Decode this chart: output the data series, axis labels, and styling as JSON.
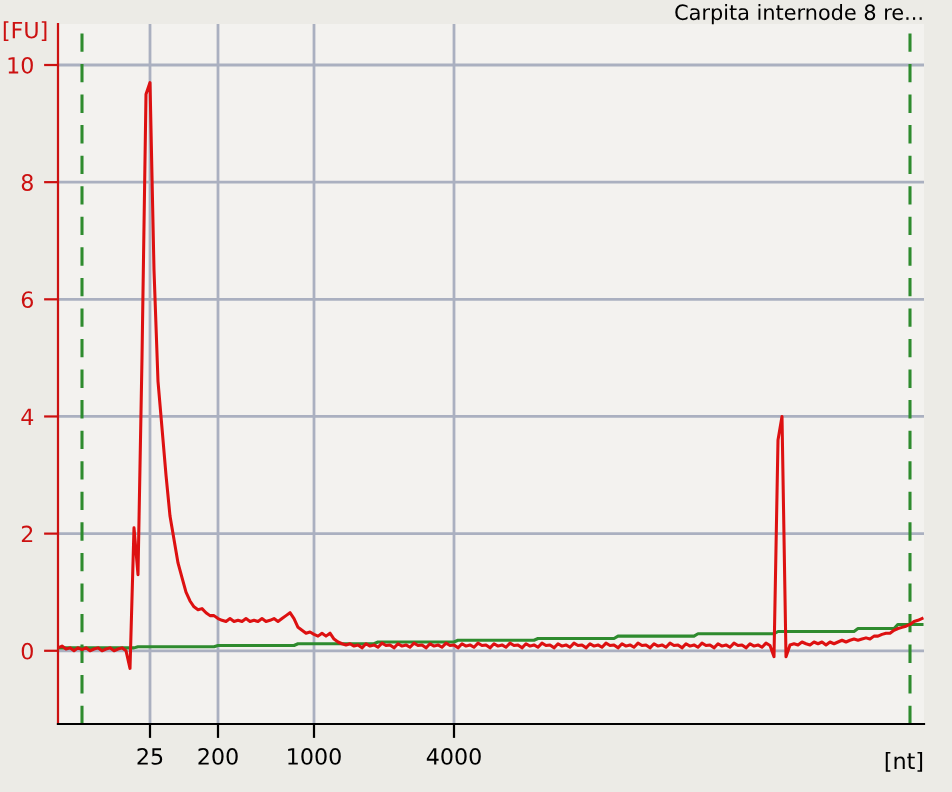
{
  "chart_data": {
    "type": "line",
    "title": "Carpita internode 8 re...",
    "xlabel": "[nt]",
    "ylabel": "[FU]",
    "categories": [
      null,
      null,
      null,
      null,
      null,
      null,
      null,
      null,
      null,
      null,
      null,
      null,
      null,
      null,
      null,
      null,
      null,
      null,
      null,
      null,
      null,
      null,
      null,
      "25",
      null,
      null,
      null,
      null,
      null,
      null,
      null,
      null,
      null,
      null,
      null,
      null,
      null,
      null,
      null,
      null,
      "200",
      null,
      null,
      null,
      null,
      null,
      null,
      null,
      null,
      null,
      null,
      null,
      null,
      null,
      null,
      null,
      null,
      null,
      null,
      null,
      null,
      null,
      null,
      null,
      "1000",
      null,
      null,
      null,
      null,
      null,
      null,
      null,
      null,
      null,
      null,
      null,
      null,
      null,
      null,
      null,
      null,
      null,
      null,
      null,
      null,
      null,
      null,
      null,
      null,
      null,
      null,
      null,
      null,
      null,
      null,
      null,
      null,
      null,
      null,
      "4000",
      null,
      null,
      null,
      null,
      null,
      null,
      null,
      null,
      null,
      null,
      null,
      null,
      null,
      null,
      null,
      null,
      null,
      null,
      null,
      null,
      null,
      null,
      null,
      null,
      null,
      null,
      null,
      null,
      null,
      null,
      null,
      null,
      null,
      null,
      null,
      null,
      null,
      null,
      null,
      null,
      null,
      null,
      null,
      null,
      null,
      null,
      null,
      null,
      null,
      null,
      null,
      null,
      null,
      null,
      null,
      null,
      null,
      null,
      null,
      null,
      null,
      null,
      null,
      null,
      null,
      null,
      null,
      null,
      null,
      null,
      null,
      null,
      null,
      null,
      null,
      null,
      null,
      null,
      null,
      null,
      null,
      null,
      null,
      null,
      null,
      null,
      null,
      null,
      null,
      null,
      null,
      null,
      null,
      null,
      null,
      null,
      null,
      null,
      null,
      null,
      null,
      null,
      null,
      null,
      null,
      null,
      null,
      null,
      null,
      null,
      null,
      null,
      null,
      null,
      null,
      null,
      null
    ],
    "ylim": [
      -1.25,
      10.7
    ],
    "yticks": [
      0,
      2,
      4,
      6,
      8,
      10
    ],
    "grid": true,
    "marker": "none",
    "line_style": "solid",
    "series": [
      {
        "color": "#2e8b2e",
        "values": [
          0.05,
          0.05,
          0.05,
          0.05,
          0.05,
          0.05,
          0.05,
          0.05,
          0.05,
          0.05,
          0.05,
          0.05,
          0.05,
          0.05,
          0.05,
          0.05,
          0.05,
          0.05,
          0.05,
          0.05,
          0.07,
          0.07,
          0.07,
          0.07,
          0.07,
          0.07,
          0.07,
          0.07,
          0.07,
          0.07,
          0.07,
          0.07,
          0.07,
          0.07,
          0.07,
          0.07,
          0.07,
          0.07,
          0.07,
          0.07,
          0.09,
          0.09,
          0.09,
          0.09,
          0.09,
          0.09,
          0.09,
          0.09,
          0.09,
          0.09,
          0.09,
          0.09,
          0.09,
          0.09,
          0.09,
          0.09,
          0.09,
          0.09,
          0.09,
          0.09,
          0.12,
          0.12,
          0.12,
          0.12,
          0.12,
          0.12,
          0.12,
          0.12,
          0.12,
          0.12,
          0.12,
          0.12,
          0.12,
          0.12,
          0.12,
          0.12,
          0.12,
          0.12,
          0.12,
          0.12,
          0.15,
          0.15,
          0.15,
          0.15,
          0.15,
          0.15,
          0.15,
          0.15,
          0.15,
          0.15,
          0.15,
          0.15,
          0.15,
          0.15,
          0.15,
          0.15,
          0.15,
          0.15,
          0.15,
          0.15,
          0.18,
          0.18,
          0.18,
          0.18,
          0.18,
          0.18,
          0.18,
          0.18,
          0.18,
          0.18,
          0.18,
          0.18,
          0.18,
          0.18,
          0.18,
          0.18,
          0.18,
          0.18,
          0.18,
          0.18,
          0.21,
          0.21,
          0.21,
          0.21,
          0.21,
          0.21,
          0.21,
          0.21,
          0.21,
          0.21,
          0.21,
          0.21,
          0.21,
          0.21,
          0.21,
          0.21,
          0.21,
          0.21,
          0.21,
          0.21,
          0.25,
          0.25,
          0.25,
          0.25,
          0.25,
          0.25,
          0.25,
          0.25,
          0.25,
          0.25,
          0.25,
          0.25,
          0.25,
          0.25,
          0.25,
          0.25,
          0.25,
          0.25,
          0.25,
          0.25,
          0.29,
          0.29,
          0.29,
          0.29,
          0.29,
          0.29,
          0.29,
          0.29,
          0.29,
          0.29,
          0.29,
          0.29,
          0.29,
          0.29,
          0.29,
          0.29,
          0.29,
          0.29,
          0.29,
          0.29,
          0.33,
          0.33,
          0.33,
          0.33,
          0.33,
          0.33,
          0.33,
          0.33,
          0.33,
          0.33,
          0.33,
          0.33,
          0.33,
          0.33,
          0.33,
          0.33,
          0.33,
          0.33,
          0.33,
          0.33,
          0.38,
          0.38,
          0.38,
          0.38,
          0.38,
          0.38,
          0.38,
          0.38,
          0.38,
          0.38,
          0.45,
          0.45,
          0.45,
          0.45,
          0.45,
          0.45,
          0.45
        ]
      },
      {
        "color": "#dd1111",
        "values": [
          0.05,
          0.08,
          0.03,
          0.05,
          0.0,
          0.05,
          0.02,
          0.05,
          0.0,
          0.03,
          0.05,
          0.0,
          0.03,
          0.05,
          0.0,
          0.03,
          0.05,
          0.0,
          -0.3,
          2.1,
          1.3,
          5.0,
          9.5,
          9.7,
          6.5,
          4.6,
          3.8,
          3.0,
          2.3,
          1.9,
          1.5,
          1.25,
          1.0,
          0.85,
          0.75,
          0.7,
          0.72,
          0.65,
          0.6,
          0.6,
          0.55,
          0.52,
          0.5,
          0.55,
          0.5,
          0.52,
          0.5,
          0.55,
          0.5,
          0.52,
          0.5,
          0.55,
          0.5,
          0.52,
          0.55,
          0.5,
          0.55,
          0.6,
          0.65,
          0.55,
          0.4,
          0.35,
          0.3,
          0.32,
          0.28,
          0.25,
          0.3,
          0.25,
          0.3,
          0.2,
          0.15,
          0.12,
          0.1,
          0.12,
          0.08,
          0.1,
          0.05,
          0.12,
          0.08,
          0.1,
          0.06,
          0.13,
          0.09,
          0.1,
          0.05,
          0.12,
          0.08,
          0.1,
          0.06,
          0.13,
          0.09,
          0.1,
          0.05,
          0.12,
          0.08,
          0.1,
          0.06,
          0.13,
          0.09,
          0.1,
          0.05,
          0.12,
          0.08,
          0.1,
          0.06,
          0.13,
          0.09,
          0.1,
          0.05,
          0.12,
          0.08,
          0.1,
          0.06,
          0.13,
          0.09,
          0.1,
          0.05,
          0.12,
          0.08,
          0.1,
          0.06,
          0.13,
          0.09,
          0.1,
          0.05,
          0.12,
          0.08,
          0.1,
          0.06,
          0.13,
          0.09,
          0.1,
          0.05,
          0.12,
          0.08,
          0.1,
          0.06,
          0.13,
          0.09,
          0.1,
          0.05,
          0.12,
          0.08,
          0.1,
          0.06,
          0.13,
          0.09,
          0.1,
          0.05,
          0.12,
          0.08,
          0.1,
          0.06,
          0.13,
          0.09,
          0.1,
          0.05,
          0.12,
          0.08,
          0.1,
          0.06,
          0.13,
          0.09,
          0.1,
          0.05,
          0.12,
          0.08,
          0.1,
          0.06,
          0.13,
          0.09,
          0.1,
          0.05,
          0.12,
          0.08,
          0.1,
          0.06,
          0.13,
          0.09,
          -0.1,
          3.6,
          4.0,
          -0.1,
          0.1,
          0.12,
          0.1,
          0.15,
          0.12,
          0.1,
          0.15,
          0.12,
          0.15,
          0.1,
          0.15,
          0.12,
          0.15,
          0.18,
          0.15,
          0.18,
          0.2,
          0.18,
          0.2,
          0.22,
          0.2,
          0.25,
          0.25,
          0.28,
          0.3,
          0.3,
          0.35,
          0.38,
          0.4,
          0.42,
          0.45,
          0.5,
          0.52,
          0.55
        ]
      }
    ]
  }
}
